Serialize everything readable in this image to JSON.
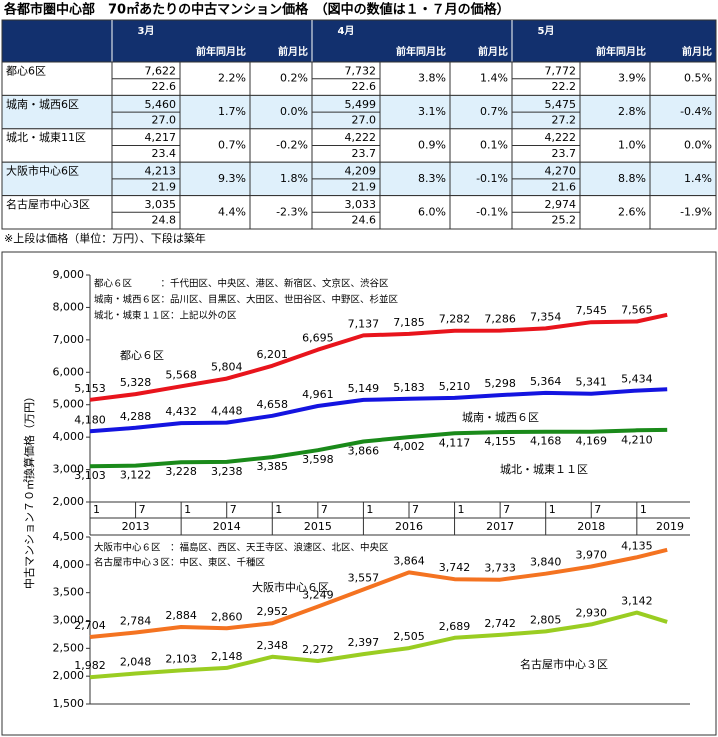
{
  "title": "各都市圏中心部　70㎡あたりの中古マンション価格　（図中の数値は１・７月の価格）",
  "table": {
    "months": [
      "3月",
      "4月",
      "5月"
    ],
    "sub_headers": [
      "前年同月比",
      "前月比"
    ],
    "rows": [
      {
        "name": "都心6区",
        "cells": [
          [
            "7,622",
            "22.6",
            "2.2%",
            "0.2%"
          ],
          [
            "7,732",
            "22.6",
            "3.8%",
            "1.4%"
          ],
          [
            "7,772",
            "22.2",
            "3.9%",
            "0.5%"
          ]
        ]
      },
      {
        "name": "城南・城西6区",
        "cells": [
          [
            "5,460",
            "27.0",
            "1.7%",
            "0.0%"
          ],
          [
            "5,499",
            "27.0",
            "3.1%",
            "0.7%"
          ],
          [
            "5,475",
            "27.2",
            "2.8%",
            "-0.4%"
          ]
        ]
      },
      {
        "name": "城北・城東11区",
        "cells": [
          [
            "4,217",
            "23.4",
            "0.7%",
            "-0.2%"
          ],
          [
            "4,222",
            "23.7",
            "0.9%",
            "0.1%"
          ],
          [
            "4,222",
            "23.7",
            "1.0%",
            "0.0%"
          ]
        ]
      },
      {
        "name": "大阪市中心6区",
        "cells": [
          [
            "4,213",
            "21.9",
            "9.3%",
            "1.8%"
          ],
          [
            "4,209",
            "21.9",
            "8.3%",
            "-0.1%"
          ],
          [
            "4,270",
            "21.6",
            "8.8%",
            "1.4%"
          ]
        ]
      },
      {
        "name": "名古屋市中心3区",
        "cells": [
          [
            "3,035",
            "24.8",
            "4.4%",
            "-2.3%"
          ],
          [
            "3,033",
            "24.6",
            "6.0%",
            "-0.1%"
          ],
          [
            "2,974",
            "25.2",
            "2.6%",
            "-1.9%"
          ]
        ]
      }
    ]
  },
  "note": "※上段は価格（単位：万円）、下段は築年",
  "y_axis_label": "中古マンション７０㎡換算価格（万円）",
  "chart_data": [
    {
      "type": "line",
      "notes": [
        "都心６区　　　：千代田区、中央区、港区、新宿区、文京区、渋谷区",
        "城南・城西６区：品川区、目黒区、大田区、世田谷区、中野区、杉並区",
        "城北・城東１１区：上記以外の区"
      ],
      "x": [
        "2013-01",
        "2013-07",
        "2014-01",
        "2014-07",
        "2015-01",
        "2015-07",
        "2016-01",
        "2016-07",
        "2017-01",
        "2017-07",
        "2018-01",
        "2018-07",
        "2019-01",
        "2019-05"
      ],
      "xlim": [
        "2013-01",
        "2019-08"
      ],
      "xticks": [
        {
          "value": "2013-01",
          "label": "1"
        },
        {
          "value": "2013-07",
          "label": "7"
        },
        {
          "value": "2014-01",
          "label": "1"
        },
        {
          "value": "2014-07",
          "label": "7"
        },
        {
          "value": "2015-01",
          "label": "1"
        },
        {
          "value": "2015-07",
          "label": "7"
        },
        {
          "value": "2016-01",
          "label": "1"
        },
        {
          "value": "2016-07",
          "label": "7"
        },
        {
          "value": "2017-01",
          "label": "1"
        },
        {
          "value": "2017-07",
          "label": "7"
        },
        {
          "value": "2018-01",
          "label": "1"
        },
        {
          "value": "2018-07",
          "label": "7"
        },
        {
          "value": "2019-01",
          "label": "1"
        }
      ],
      "years": [
        "2013",
        "2014",
        "2015",
        "2016",
        "2017",
        "2018",
        "2019"
      ],
      "ylim": [
        2000,
        9000
      ],
      "yticks": [
        {
          "value": 2000,
          "label": "2,000"
        },
        {
          "value": 3000,
          "label": "3,000"
        },
        {
          "value": 4000,
          "label": "4,000"
        },
        {
          "value": 5000,
          "label": "5,000"
        },
        {
          "value": 6000,
          "label": "6,000"
        },
        {
          "value": 7000,
          "label": "7,000"
        },
        {
          "value": 8000,
          "label": "8,000"
        },
        {
          "value": 9000,
          "label": "9,000"
        }
      ],
      "series": [
        {
          "name": "都心６区",
          "color": "#e8141c",
          "values": [
            5153,
            5328,
            5568,
            5804,
            6201,
            6695,
            7137,
            7185,
            7282,
            7286,
            7354,
            7545,
            7565,
            7772
          ],
          "value_labels": [
            "5,153",
            "5,328",
            "5,568",
            "5,804",
            "6,201",
            "6,695",
            "7,137",
            "7,185",
            "7,282",
            "7,286",
            "7,354",
            "7,545",
            "7,565",
            null
          ]
        },
        {
          "name": "城南・城西６区",
          "color": "#1414e0",
          "values": [
            4180,
            4288,
            4432,
            4448,
            4658,
            4961,
            5149,
            5183,
            5210,
            5298,
            5364,
            5341,
            5434,
            5475
          ],
          "value_labels": [
            "4,180",
            "4,288",
            "4,432",
            "4,448",
            "4,658",
            "4,961",
            "5,149",
            "5,183",
            "5,210",
            "5,298",
            "5,364",
            "5,341",
            "5,434",
            null
          ]
        },
        {
          "name": "城北・城東１１区",
          "color": "#1a8a1a",
          "values": [
            3103,
            3122,
            3228,
            3238,
            3385,
            3598,
            3866,
            4002,
            4117,
            4155,
            4168,
            4169,
            4210,
            4222
          ],
          "value_labels": [
            "3,103",
            "3,122",
            "3,228",
            "3,238",
            "3,385",
            "3,598",
            "3,866",
            "4,002",
            "4,117",
            "4,155",
            "4,168",
            "4,169",
            "4,210",
            null
          ]
        }
      ]
    },
    {
      "type": "line",
      "notes": [
        "大阪市中心６区　：福島区、西区、天王寺区、浪速区、北区、中央区",
        "名古屋市中心３区：中区、東区、千種区"
      ],
      "x": [
        "2013-01",
        "2013-07",
        "2014-01",
        "2014-07",
        "2015-01",
        "2015-07",
        "2016-01",
        "2016-07",
        "2017-01",
        "2017-07",
        "2018-01",
        "2018-07",
        "2019-01",
        "2019-05"
      ],
      "xlim": [
        "2013-01",
        "2019-08"
      ],
      "ylim": [
        1500,
        4500
      ],
      "yticks": [
        {
          "value": 1500,
          "label": "1,500"
        },
        {
          "value": 2000,
          "label": "2,000"
        },
        {
          "value": 2500,
          "label": "2,500"
        },
        {
          "value": 3000,
          "label": "3,000"
        },
        {
          "value": 3500,
          "label": "3,500"
        },
        {
          "value": 4000,
          "label": "4,000"
        },
        {
          "value": 4500,
          "label": "4,500"
        }
      ],
      "series": [
        {
          "name": "大阪市中心６区",
          "color": "#f47321",
          "values": [
            2704,
            2784,
            2884,
            2860,
            2952,
            3249,
            3557,
            3864,
            3742,
            3733,
            3840,
            3970,
            4135,
            4270
          ],
          "value_labels": [
            "2,704",
            "2,784",
            "2,884",
            "2,860",
            "2,952",
            "3,249",
            "3,557",
            "3,864",
            "3,742",
            "3,733",
            "3,840",
            "3,970",
            "4,135",
            null
          ]
        },
        {
          "name": "名古屋市中心３区",
          "color": "#9acd22",
          "values": [
            1982,
            2048,
            2103,
            2148,
            2348,
            2272,
            2397,
            2505,
            2689,
            2742,
            2805,
            2930,
            3142,
            2974
          ],
          "value_labels": [
            "1,982",
            "2,048",
            "2,103",
            "2,148",
            "2,348",
            "2,272",
            "2,397",
            "2,505",
            "2,689",
            "2,742",
            "2,805",
            "2,930",
            "3,142",
            null
          ]
        }
      ]
    }
  ]
}
